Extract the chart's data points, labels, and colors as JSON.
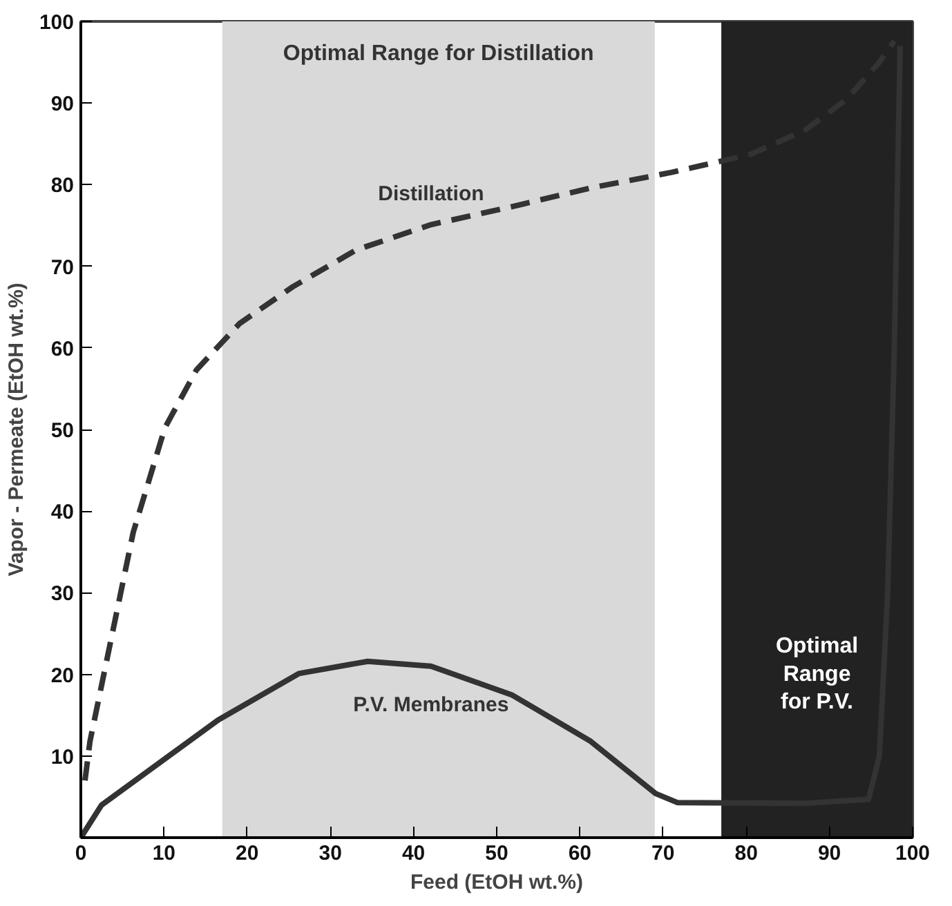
{
  "chart_data": {
    "type": "line",
    "xlabel": "Feed (EtOH wt.%)",
    "ylabel": "Vapor - Permeate (EtOH wt.%)",
    "xlim": [
      0,
      100
    ],
    "ylim": [
      0,
      100
    ],
    "xticks": [
      0,
      10,
      20,
      30,
      40,
      50,
      60,
      70,
      80,
      90,
      100
    ],
    "yticks": [
      10,
      20,
      30,
      40,
      50,
      60,
      70,
      80,
      90,
      100
    ],
    "grid": false,
    "series": [
      {
        "name": "Distillation",
        "color": "#333333",
        "line_style": "dashed",
        "x": [
          0.5,
          1.1,
          3.7,
          6.3,
          10.1,
          13.9,
          19.1,
          25.5,
          33.1,
          42.1,
          51.8,
          61.3,
          71,
          80.5,
          87.1,
          92.1,
          96,
          97.8
        ],
        "values": [
          7,
          11.8,
          24.6,
          37.4,
          50.2,
          57.3,
          63,
          67.5,
          72,
          75.1,
          77.3,
          79.6,
          81.5,
          83.7,
          86.7,
          90.5,
          95,
          97.6
        ]
      },
      {
        "name": "P.V. Membranes",
        "color": "#333333",
        "line_style": "solid",
        "x": [
          0,
          2.5,
          16.5,
          26.2,
          34.5,
          42.1,
          51.8,
          61.3,
          69.1,
          71.7,
          87.1,
          94.7,
          96,
          97,
          97.8,
          98.5
        ],
        "values": [
          0,
          4,
          14.4,
          20.1,
          21.6,
          21,
          17.5,
          11.8,
          5.4,
          4.3,
          4.2,
          4.7,
          10,
          30,
          60,
          97
        ]
      }
    ],
    "bands": [
      {
        "axis": "x",
        "from": 17,
        "to": 69,
        "color": "#d9d9d9",
        "label": "Optimal Range for Distillation"
      },
      {
        "axis": "x",
        "from": 77,
        "to": 100,
        "color": "#222222",
        "label": "Optimal\nRange\nfor P.V."
      }
    ]
  }
}
